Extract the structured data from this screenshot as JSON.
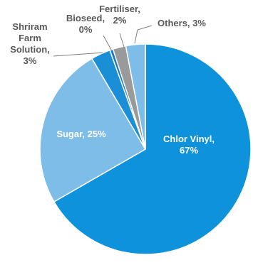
{
  "chart_data": {
    "type": "pie",
    "title": "",
    "series": [
      {
        "name": "",
        "slices": [
          {
            "label_lines": [
              "Chlor Vinyl,",
              "67%"
            ],
            "value": 67,
            "color": "#0f92dc",
            "label_color": "light"
          },
          {
            "label_lines": [
              "Sugar, 25%"
            ],
            "value": 25,
            "color": "#7fbde9",
            "label_color": "light"
          },
          {
            "label_lines": [
              "Shriram",
              "Farm",
              "Solution,",
              "3%"
            ],
            "value": 3,
            "color": "#1b8fd6",
            "label_color": "dark"
          },
          {
            "label_lines": [
              "Bioseed,",
              "0%"
            ],
            "value": 0.5,
            "color": "#1678c8",
            "label_color": "dark"
          },
          {
            "label_lines": [
              "Fertiliser,",
              "2%"
            ],
            "value": 2,
            "color": "#9a9a9a",
            "label_color": "dark"
          },
          {
            "label_lines": [
              "Others, 3%"
            ],
            "value": 3,
            "color": "#7fbde9",
            "label_color": "dark"
          }
        ]
      }
    ],
    "legend": "none",
    "start": "top",
    "direction": "clockwise"
  }
}
